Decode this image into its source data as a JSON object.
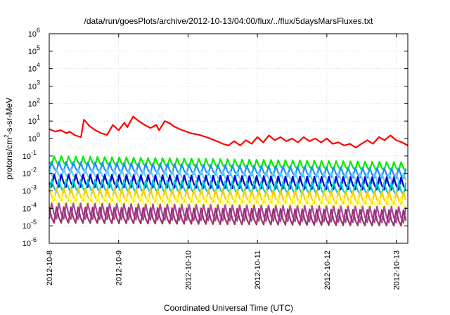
{
  "chart_data": {
    "type": "line",
    "title": "/data/run/goesPlots/archive/2012-10-13/04:00/flux/../flux/5daysMarsFluxes.txt",
    "xlabel": "Coordinated Universal Time (UTC)",
    "ylabel": "protons/cm2-s-sr-MeV",
    "ylabel_main": "protons/cm",
    "ylabel_sup": "2",
    "ylabel_tail": "-s-sr-MeV",
    "yscale": "log",
    "ylim": [
      1e-06,
      1000000.0
    ],
    "xlim": [
      "2012-10-08T00:00",
      "2012-10-13T04:00"
    ],
    "grid": true,
    "y_ticks": [
      {
        "value": 1e-06,
        "base": "10",
        "exp": "-6"
      },
      {
        "value": 1e-05,
        "base": "10",
        "exp": "-5"
      },
      {
        "value": 0.0001,
        "base": "10",
        "exp": "-4"
      },
      {
        "value": 0.001,
        "base": "10",
        "exp": "-3"
      },
      {
        "value": 0.01,
        "base": "10",
        "exp": "-2"
      },
      {
        "value": 0.1,
        "base": "10",
        "exp": "-1"
      },
      {
        "value": 1.0,
        "base": "10",
        "exp": "0"
      },
      {
        "value": 10.0,
        "base": "10",
        "exp": "1"
      },
      {
        "value": 100.0,
        "base": "10",
        "exp": "2"
      },
      {
        "value": 1000.0,
        "base": "10",
        "exp": "3"
      },
      {
        "value": 10000.0,
        "base": "10",
        "exp": "4"
      },
      {
        "value": 100000.0,
        "base": "10",
        "exp": "5"
      },
      {
        "value": 1000000.0,
        "base": "10",
        "exp": "6"
      }
    ],
    "x_ticks": [
      {
        "value": "2012-10-08T00:00",
        "label": "2012-10-8"
      },
      {
        "value": "2012-10-09T00:00",
        "label": "2012-10-9"
      },
      {
        "value": "2012-10-10T00:00",
        "label": "2012-10-10"
      },
      {
        "value": "2012-10-11T00:00",
        "label": "2012-10-11"
      },
      {
        "value": "2012-10-12T00:00",
        "label": "2012-10-12"
      },
      {
        "value": "2012-10-13T00:00",
        "label": "2012-10-13"
      }
    ],
    "series": [
      {
        "color": "#ff0000",
        "x": [
          "2012-10-08T00:00",
          "2012-10-08T02:00",
          "2012-10-08T04:00",
          "2012-10-08T06:00",
          "2012-10-08T07:00",
          "2012-10-08T09:00",
          "2012-10-08T11:00",
          "2012-10-08T12:00",
          "2012-10-08T14:00",
          "2012-10-08T16:00",
          "2012-10-08T18:00",
          "2012-10-08T20:00",
          "2012-10-08T22:00",
          "2012-10-09T00:00",
          "2012-10-09T02:00",
          "2012-10-09T03:00",
          "2012-10-09T05:00",
          "2012-10-09T07:00",
          "2012-10-09T09:00",
          "2012-10-09T11:00",
          "2012-10-09T13:00",
          "2012-10-09T14:00",
          "2012-10-09T16:00",
          "2012-10-09T18:00",
          "2012-10-09T19:00",
          "2012-10-09T22:00",
          "2012-10-10T01:00",
          "2012-10-10T04:00",
          "2012-10-10T07:00",
          "2012-10-10T10:00",
          "2012-10-10T12:00",
          "2012-10-10T14:00",
          "2012-10-10T16:00",
          "2012-10-10T18:00",
          "2012-10-10T20:00",
          "2012-10-10T22:00",
          "2012-10-11T00:00",
          "2012-10-11T02:00",
          "2012-10-11T04:00",
          "2012-10-11T06:00",
          "2012-10-11T08:00",
          "2012-10-11T10:00",
          "2012-10-11T12:00",
          "2012-10-11T14:00",
          "2012-10-11T16:00",
          "2012-10-11T18:00",
          "2012-10-11T20:00",
          "2012-10-11T22:00",
          "2012-10-12T00:00",
          "2012-10-12T02:00",
          "2012-10-12T04:00",
          "2012-10-12T06:00",
          "2012-10-12T08:00",
          "2012-10-12T10:00",
          "2012-10-12T12:00",
          "2012-10-12T14:00",
          "2012-10-12T16:00",
          "2012-10-12T18:00",
          "2012-10-12T20:00",
          "2012-10-12T22:00",
          "2012-10-13T00:00",
          "2012-10-13T02:00",
          "2012-10-13T04:00"
        ],
        "values": [
          3.5,
          2.5,
          3,
          2,
          2.5,
          1.5,
          1.2,
          12,
          5,
          3,
          2,
          1.6,
          6,
          3,
          8,
          4.5,
          18,
          10,
          6,
          4,
          6,
          3,
          10,
          7,
          5,
          3,
          2,
          1.6,
          1.1,
          0.7,
          0.5,
          0.4,
          0.7,
          0.4,
          0.8,
          0.5,
          1.2,
          0.6,
          1.5,
          0.8,
          1.2,
          0.7,
          1,
          0.6,
          1.2,
          0.7,
          1,
          0.6,
          1,
          0.5,
          0.6,
          0.4,
          0.5,
          0.3,
          0.5,
          0.8,
          0.5,
          1.2,
          0.8,
          1.5,
          0.8,
          0.6,
          0.4
        ]
      },
      {
        "color": "#00ee00",
        "base": 0.035,
        "osc": 2.2,
        "peak": 0.09,
        "start": 0.045,
        "end": 0.02
      },
      {
        "color": "#1e90ff",
        "base": 0.011,
        "osc": 2.4,
        "peak": 0.022,
        "start": 0.02,
        "end": 0.008
      },
      {
        "color": "#66ccff",
        "base": 0.005,
        "osc": 2.4,
        "peak": 0.009,
        "start": 0.008,
        "end": 0.004
      },
      {
        "color": "#0000cc",
        "base": 0.0025,
        "osc": 3,
        "peak": 0.004,
        "start": 0.003,
        "end": 0.002
      },
      {
        "color": "#00cccc",
        "base": 0.0012,
        "osc": 3,
        "peak": 0.002,
        "start": 0.0015,
        "end": 0.001
      },
      {
        "color": "#ffcc00",
        "base": 0.0004,
        "osc": 3,
        "peak": 0.0007,
        "start": 0.0005,
        "end": 0.0003
      },
      {
        "color": "#ffff55",
        "base": 0.00018,
        "osc": 3,
        "peak": 0.0003,
        "start": 0.0002,
        "end": 0.00015
      },
      {
        "color": "#aa44aa",
        "base": 4.5e-05,
        "osc": 4,
        "peak": 8e-05,
        "start": 5e-05,
        "end": 3e-05
      },
      {
        "color": "#993366",
        "base": 2.5e-05,
        "osc": 4,
        "peak": 5e-05,
        "start": 3e-05,
        "end": 2e-05
      }
    ]
  }
}
